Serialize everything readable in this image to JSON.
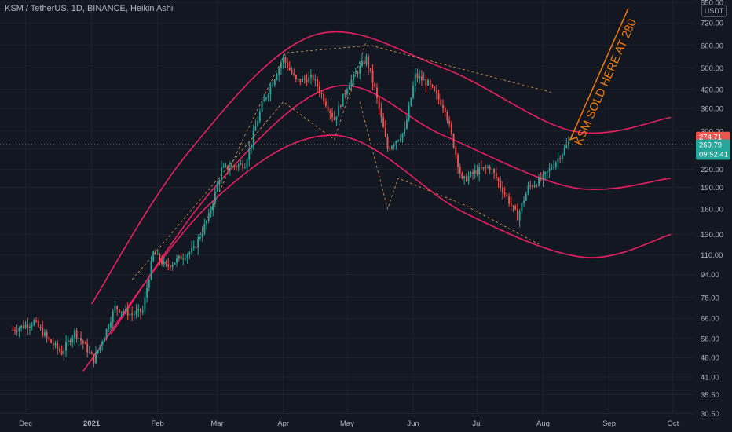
{
  "header": {
    "title": "KSM / TetherUS, 1D, BINANCE, Heikin Ashi",
    "currency": "USDT"
  },
  "colors": {
    "bull": "#26a69a",
    "bear": "#ef5350",
    "curve": "#e91e63",
    "annotation": "#f57c00",
    "dashed": "#e0a050"
  },
  "chart_data": {
    "type": "candlestick",
    "scale": "log",
    "ylim": [
      28,
      850
    ],
    "y_ticks": [
      30.5,
      35.5,
      41.0,
      48.0,
      56.0,
      66.0,
      78.0,
      94.0,
      110.0,
      130.0,
      160.0,
      190.0,
      220.0,
      260.0,
      300.0,
      360.0,
      420.0,
      500.0,
      600.0,
      720.0,
      850.0
    ],
    "y_tick_labels": [
      "30.50",
      "35.50",
      "41.00",
      "48.00",
      "56.00",
      "66.00",
      "78.00",
      "94.00",
      "110.00",
      "130.00",
      "160.00",
      "190.00",
      "220.00",
      "260.00",
      "300.00",
      "360.00",
      "420.00",
      "500.00",
      "600.00",
      "720.00",
      "850.00"
    ],
    "x_ticks": [
      {
        "label": "Dec",
        "date": "2020-12-01",
        "bold": false
      },
      {
        "label": "2021",
        "date": "2021-01-01",
        "bold": true
      },
      {
        "label": "Feb",
        "date": "2021-02-01",
        "bold": false
      },
      {
        "label": "Mar",
        "date": "2021-03-01",
        "bold": false
      },
      {
        "label": "Apr",
        "date": "2021-04-01",
        "bold": false
      },
      {
        "label": "May",
        "date": "2021-05-01",
        "bold": false
      },
      {
        "label": "Jun",
        "date": "2021-06-01",
        "bold": false
      },
      {
        "label": "Jul",
        "date": "2021-07-01",
        "bold": false
      },
      {
        "label": "Aug",
        "date": "2021-08-01",
        "bold": false
      },
      {
        "label": "Sep",
        "date": "2021-09-01",
        "bold": false
      },
      {
        "label": "Oct",
        "date": "2021-10-01",
        "bold": false
      }
    ],
    "last_date": "2021-08-13",
    "price_tags": [
      {
        "value": 274.71,
        "label": "274.71",
        "color": "#ef5350"
      },
      {
        "value": 269.79,
        "label": "269.79",
        "sublabel": "09:52:41",
        "color": "#26a69a"
      }
    ],
    "price_path": [
      [
        "2020-11-25",
        60
      ],
      [
        "2020-12-05",
        64
      ],
      [
        "2020-12-12",
        55
      ],
      [
        "2020-12-18",
        50
      ],
      [
        "2020-12-24",
        59
      ],
      [
        "2020-12-28",
        54
      ],
      [
        "2021-01-02",
        47
      ],
      [
        "2021-01-08",
        60
      ],
      [
        "2021-01-12",
        72
      ],
      [
        "2021-01-20",
        68
      ],
      [
        "2021-01-25",
        70
      ],
      [
        "2021-01-30",
        112
      ],
      [
        "2021-02-05",
        100
      ],
      [
        "2021-02-12",
        108
      ],
      [
        "2021-02-18",
        115
      ],
      [
        "2021-02-25",
        150
      ],
      [
        "2021-03-03",
        220
      ],
      [
        "2021-03-08",
        225
      ],
      [
        "2021-03-14",
        230
      ],
      [
        "2021-03-22",
        370
      ],
      [
        "2021-04-01",
        540
      ],
      [
        "2021-04-07",
        450
      ],
      [
        "2021-04-15",
        460
      ],
      [
        "2021-04-25",
        330
      ],
      [
        "2021-05-01",
        430
      ],
      [
        "2021-05-10",
        540
      ],
      [
        "2021-05-14",
        420
      ],
      [
        "2021-05-20",
        260
      ],
      [
        "2021-05-28",
        300
      ],
      [
        "2021-06-02",
        470
      ],
      [
        "2021-06-08",
        440
      ],
      [
        "2021-06-16",
        360
      ],
      [
        "2021-06-24",
        200
      ],
      [
        "2021-06-30",
        215
      ],
      [
        "2021-07-07",
        225
      ],
      [
        "2021-07-20",
        150
      ],
      [
        "2021-07-25",
        190
      ],
      [
        "2021-08-01",
        205
      ],
      [
        "2021-08-07",
        235
      ],
      [
        "2021-08-13",
        272
      ]
    ],
    "channel_curves": [
      {
        "name": "upper",
        "points": [
          [
            "2021-01-01",
            74
          ],
          [
            "2021-02-15",
            250
          ],
          [
            "2021-04-15",
            650
          ],
          [
            "2021-06-15",
            500
          ],
          [
            "2021-08-15",
            300
          ],
          [
            "2021-09-30",
            335
          ]
        ]
      },
      {
        "name": "middle",
        "points": [
          [
            "2021-01-10",
            58
          ],
          [
            "2021-03-01",
            195
          ],
          [
            "2021-04-25",
            430
          ],
          [
            "2021-06-15",
            290
          ],
          [
            "2021-08-15",
            190
          ],
          [
            "2021-09-30",
            205
          ]
        ]
      },
      {
        "name": "lower",
        "points": [
          [
            "2020-12-28",
            43
          ],
          [
            "2021-02-25",
            165
          ],
          [
            "2021-04-25",
            290
          ],
          [
            "2021-06-25",
            155
          ],
          [
            "2021-08-20",
            108
          ],
          [
            "2021-09-30",
            130
          ]
        ]
      }
    ],
    "dashed_lines": [
      [
        [
          "2021-02-20",
          125
        ],
        [
          "2021-03-13",
          280
        ],
        [
          "2021-04-02",
          565
        ],
        [
          "2021-05-12",
          600
        ],
        [
          "2021-08-05",
          410
        ]
      ],
      [
        [
          "2021-01-20",
          90
        ],
        [
          "2021-04-01",
          380
        ],
        [
          "2021-04-25",
          280
        ],
        [
          "2021-05-10",
          620
        ]
      ],
      [
        [
          "2021-05-07",
          380
        ],
        [
          "2021-05-20",
          160
        ],
        [
          "2021-05-25",
          205
        ],
        [
          "2021-06-25",
          165
        ],
        [
          "2021-07-30",
          120
        ]
      ]
    ],
    "annotation": {
      "text": "KSM SOLD HERE AT 280",
      "date": "2021-08-13",
      "value": 280,
      "arrow_to": [
        "2021-09-10",
        810
      ]
    }
  }
}
